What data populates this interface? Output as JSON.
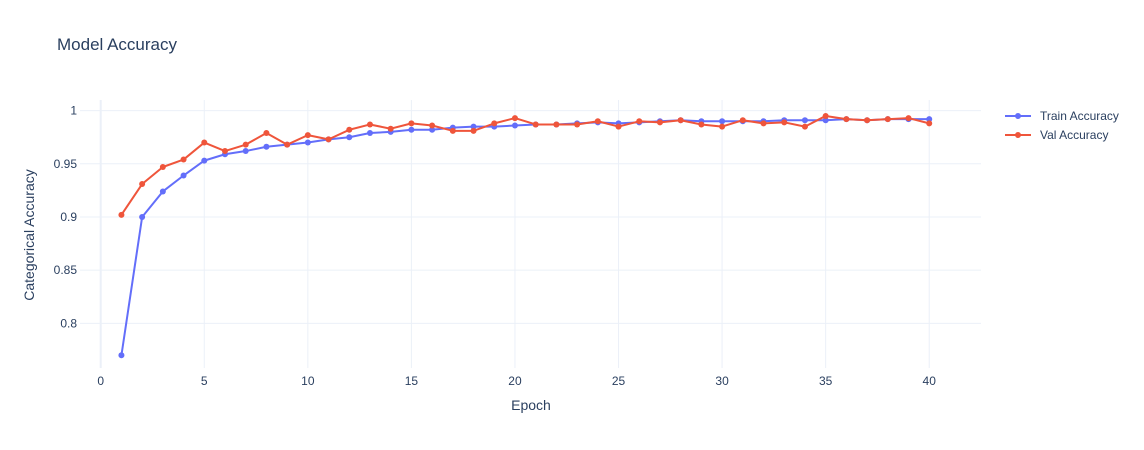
{
  "chart_data": {
    "type": "line",
    "title": "Model Accuracy",
    "xlabel": "Epoch",
    "ylabel": "Categorical Accuracy",
    "xlim": [
      -1,
      42.5
    ],
    "ylim": [
      0.758,
      1.01
    ],
    "xticks": [
      0,
      5,
      10,
      15,
      20,
      25,
      30,
      35,
      40
    ],
    "xtick_labels": [
      "0",
      "5",
      "10",
      "15",
      "20",
      "25",
      "30",
      "35",
      "40"
    ],
    "yticks": [
      0.8,
      0.85,
      0.9,
      0.95,
      1
    ],
    "ytick_labels": [
      "0.8",
      "0.85",
      "0.9",
      "0.95",
      "1"
    ],
    "grid": true,
    "legend_position": "top-right",
    "x": [
      1,
      2,
      3,
      4,
      5,
      6,
      7,
      8,
      9,
      10,
      11,
      12,
      13,
      14,
      15,
      16,
      17,
      18,
      19,
      20,
      21,
      22,
      23,
      24,
      25,
      26,
      27,
      28,
      29,
      30,
      31,
      32,
      33,
      34,
      35,
      36,
      37,
      38,
      39,
      40
    ],
    "series": [
      {
        "name": "Train Accuracy",
        "color": "#636efa",
        "values": [
          0.77,
          0.9,
          0.924,
          0.939,
          0.953,
          0.959,
          0.962,
          0.966,
          0.968,
          0.97,
          0.973,
          0.975,
          0.979,
          0.98,
          0.982,
          0.982,
          0.984,
          0.985,
          0.985,
          0.986,
          0.987,
          0.987,
          0.988,
          0.989,
          0.988,
          0.989,
          0.99,
          0.991,
          0.99,
          0.99,
          0.99,
          0.99,
          0.991,
          0.991,
          0.991,
          0.992,
          0.991,
          0.992,
          0.992,
          0.992
        ]
      },
      {
        "name": "Val Accuracy",
        "color": "#ef553b",
        "values": [
          0.902,
          0.931,
          0.947,
          0.954,
          0.97,
          0.962,
          0.968,
          0.979,
          0.968,
          0.977,
          0.973,
          0.982,
          0.987,
          0.983,
          0.988,
          0.986,
          0.981,
          0.981,
          0.988,
          0.993,
          0.987,
          0.987,
          0.987,
          0.99,
          0.985,
          0.99,
          0.989,
          0.991,
          0.987,
          0.985,
          0.991,
          0.988,
          0.989,
          0.985,
          0.995,
          0.992,
          0.991,
          0.992,
          0.993,
          0.988
        ]
      }
    ]
  }
}
